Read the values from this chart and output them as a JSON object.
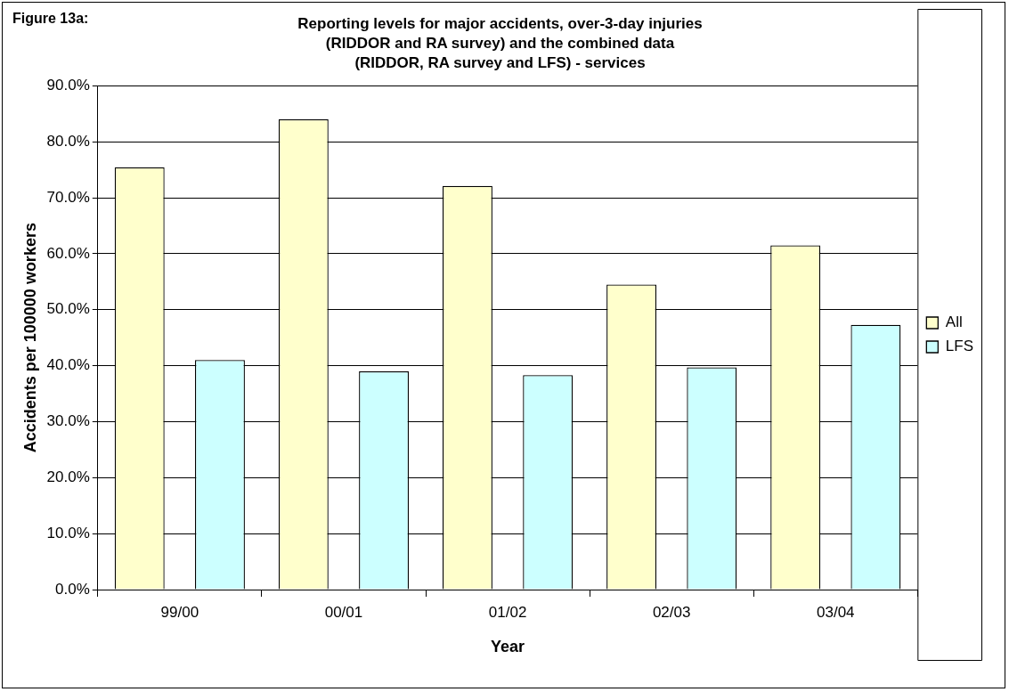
{
  "chart_data": {
    "type": "bar",
    "title": "Reporting levels for major accidents, over-3-day injuries\n(RIDDOR and RA survey) and the combined data\n(RIDDOR, RA survey and LFS) - services",
    "annotations": [
      "Figure 13a:"
    ],
    "xlabel": "Year",
    "ylabel": "Accidents per 100000 workers",
    "categories": [
      "99/00",
      "00/01",
      "01/02",
      "02/03",
      "03/04"
    ],
    "series": [
      {
        "name": "All",
        "color": "#ffffcc",
        "values": [
          75.4,
          84.0,
          72.1,
          54.5,
          61.5
        ]
      },
      {
        "name": "LFS",
        "color": "#ccffff",
        "values": [
          41.0,
          39.0,
          38.3,
          39.7,
          47.3
        ]
      }
    ],
    "ylim": [
      0,
      90
    ],
    "yticks": [
      {
        "value": 0,
        "label": "0.0%"
      },
      {
        "value": 10,
        "label": "10.0%"
      },
      {
        "value": 20,
        "label": "20.0%"
      },
      {
        "value": 30,
        "label": "30.0%"
      },
      {
        "value": 40,
        "label": "40.0%"
      },
      {
        "value": 50,
        "label": "50.0%"
      },
      {
        "value": 60,
        "label": "60.0%"
      },
      {
        "value": 70,
        "label": "70.0%"
      },
      {
        "value": 80,
        "label": "80.0%"
      },
      {
        "value": 90,
        "label": "90.0%"
      }
    ],
    "grid": "y",
    "legend": "right"
  }
}
